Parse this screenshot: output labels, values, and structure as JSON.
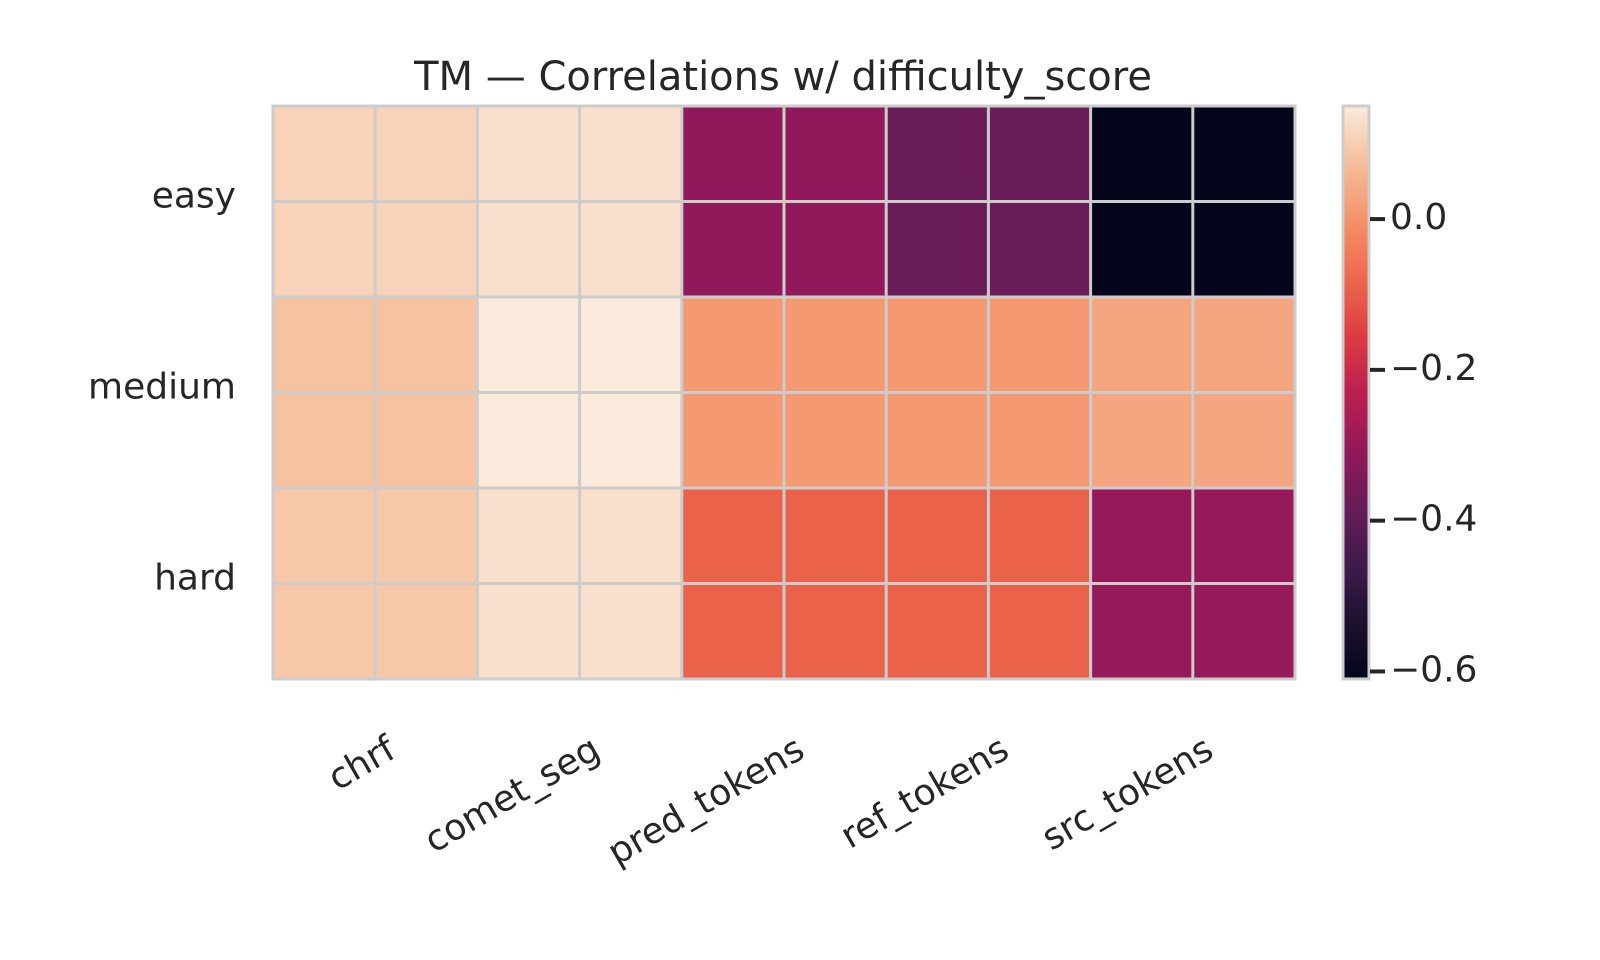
{
  "chart_data": {
    "type": "heatmap",
    "title": "TM — Correlations w/ difficulty_score",
    "xlabel": "",
    "ylabel": "",
    "x_categories": [
      "chrf",
      "comet_seg",
      "pred_tokens",
      "ref_tokens",
      "src_tokens"
    ],
    "y_categories": [
      "easy",
      "medium",
      "hard"
    ],
    "values": [
      [
        0.11,
        0.13,
        -0.31,
        -0.38,
        -0.61
      ],
      [
        0.08,
        0.15,
        0.01,
        0.01,
        0.03
      ],
      [
        0.09,
        0.13,
        -0.09,
        -0.09,
        -0.3
      ]
    ],
    "colorbar": {
      "min": -0.61,
      "max": 0.15,
      "ticks": [
        "0.0",
        "−0.2",
        "−0.4",
        "−0.6"
      ],
      "tick_values": [
        0.0,
        -0.2,
        -0.4,
        -0.6
      ],
      "colormap": "rocket"
    },
    "grid": true
  }
}
